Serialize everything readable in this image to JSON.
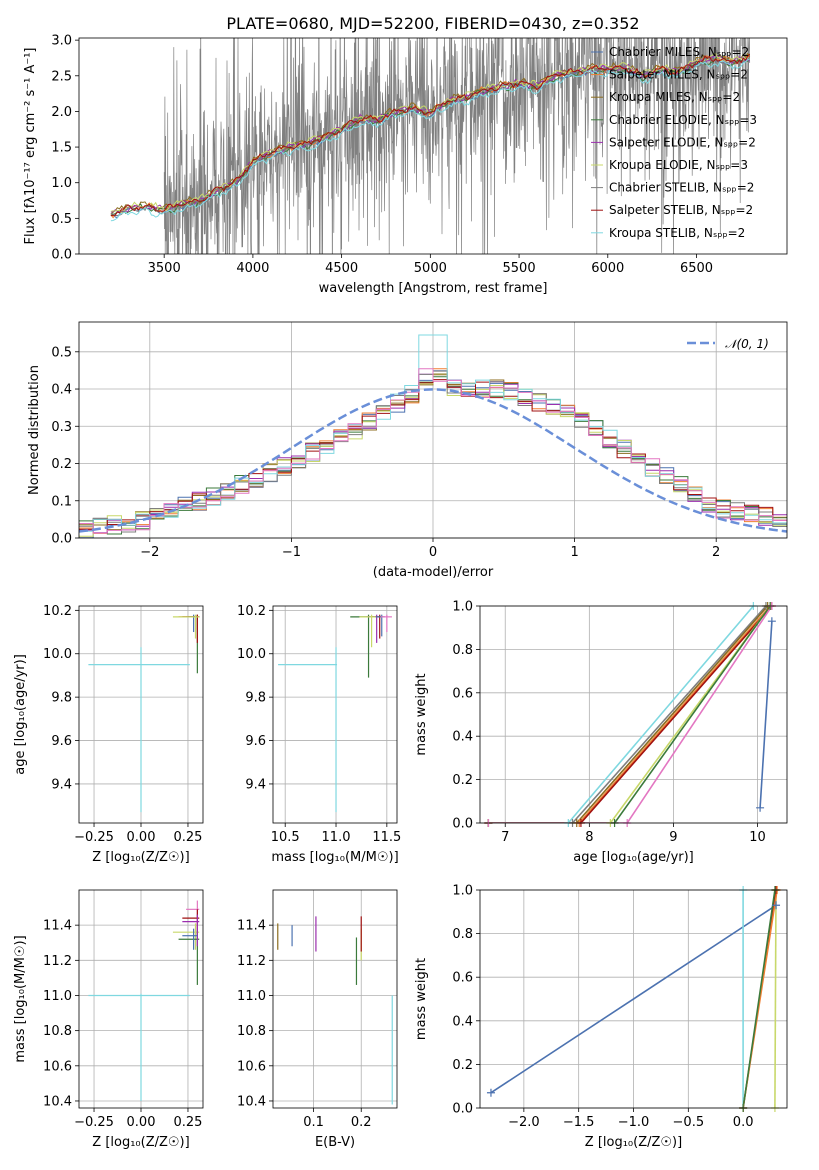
{
  "figure_title": "PLATE=0680, MJD=52200, FIBERID=0430, z=0.352",
  "colors": {
    "Chabrier MILES": "#4c72b0",
    "Salpeter MILES": "#f07f32",
    "Kroupa MILES": "#8c6d1f",
    "Chabrier ELODIE": "#3b7a3b",
    "Salpeter ELODIE": "#9b2fae",
    "Kroupa ELODIE": "#c8d86a",
    "Chabrier STELIB": "#7f7f7f",
    "Salpeter STELIB": "#a01010",
    "Kroupa STELIB": "#7fd8e0",
    "data": "#808080",
    "gauss": "#6a8fd8",
    "pink": "#e377c2"
  },
  "chart_data": [
    {
      "id": "spectrum",
      "type": "line",
      "title": "PLATE=0680, MJD=52200, FIBERID=0430, z=0.352",
      "xlabel": "wavelength [Angstrom, rest frame]",
      "ylabel": "Flux [fλ10⁻¹⁷ erg cm⁻² s⁻¹ A⁻¹]",
      "xlim": [
        3020,
        7010
      ],
      "ylim": [
        0,
        3.03
      ],
      "xticks": [
        3500,
        4000,
        4500,
        5000,
        5500,
        6000,
        6500
      ],
      "yticks": [
        0.0,
        0.5,
        1.0,
        1.5,
        2.0,
        2.5,
        3.0
      ],
      "legend_position": "top-right",
      "series": [
        {
          "name": "Chabrier MILES, Nₛₚₚ=2",
          "key": "Chabrier MILES"
        },
        {
          "name": "Salpeter MILES, Nₛₚₚ=2",
          "key": "Salpeter MILES"
        },
        {
          "name": "Kroupa MILES, Nₛₚₚ=2",
          "key": "Kroupa MILES"
        },
        {
          "name": "Chabrier ELODIE, Nₛₚₚ=3",
          "key": "Chabrier ELODIE"
        },
        {
          "name": "Salpeter ELODIE, Nₛₚₚ=2",
          "key": "Salpeter ELODIE"
        },
        {
          "name": "Kroupa ELODIE, Nₛₚₚ=3",
          "key": "Kroupa ELODIE"
        },
        {
          "name": "Chabrier STELIB, Nₛₚₚ=2",
          "key": "Chabrier STELIB"
        },
        {
          "name": "Salpeter STELIB, Nₛₚₚ=2",
          "key": "Salpeter STELIB"
        },
        {
          "name": "Kroupa STELIB, Nₛₚₚ=2",
          "key": "Kroupa STELIB"
        }
      ],
      "model_envelope": {
        "x": [
          3200,
          3300,
          3400,
          3500,
          3600,
          3700,
          3800,
          3900,
          4000,
          4100,
          4200,
          4300,
          4400,
          4500,
          4600,
          4700,
          4800,
          4900,
          5000,
          5100,
          5200,
          5300,
          5400,
          5500,
          5600,
          5700,
          5800,
          5900,
          6000,
          6100,
          6200,
          6300,
          6400,
          6500,
          6600,
          6700,
          6800
        ],
        "y": [
          0.55,
          0.65,
          0.67,
          0.62,
          0.7,
          0.75,
          0.9,
          1.0,
          1.3,
          1.42,
          1.5,
          1.55,
          1.63,
          1.75,
          1.9,
          1.88,
          2.0,
          2.05,
          1.98,
          2.15,
          2.2,
          2.3,
          2.35,
          2.4,
          2.35,
          2.5,
          2.55,
          2.6,
          2.6,
          2.62,
          2.5,
          2.6,
          2.55,
          2.7,
          2.75,
          2.7,
          2.75
        ]
      },
      "data_noise_range": [
        3500,
        6800
      ]
    },
    {
      "id": "residuals",
      "type": "histogram",
      "xlabel": "(data-model)/error",
      "ylabel": "Normed distribution",
      "xlim": [
        -2.5,
        2.5
      ],
      "ylim": [
        0,
        0.58
      ],
      "xticks": [
        -2,
        -1,
        0,
        1,
        2
      ],
      "yticks": [
        0.0,
        0.1,
        0.2,
        0.3,
        0.4,
        0.5
      ],
      "legend_position": "top-right",
      "legend": "𝒩(0, 1)",
      "bin_width": 0.1,
      "hist_envelope": {
        "x": [
          -2.5,
          -2.0,
          -1.5,
          -1.0,
          -0.5,
          -0.1,
          0.0,
          0.1,
          0.5,
          1.0,
          1.5,
          2.0,
          2.5
        ],
        "y": [
          0.02,
          0.05,
          0.12,
          0.2,
          0.3,
          0.4,
          0.46,
          0.4,
          0.4,
          0.33,
          0.2,
          0.08,
          0.05
        ]
      },
      "peak_bin": {
        "x": 0.0,
        "y": 0.545
      }
    },
    {
      "id": "age-vs-Z",
      "type": "errorbar",
      "xlabel": "Z [log₁₀(Z/Z☉)]",
      "ylabel": "age  [log₁₀(age/yr)]",
      "xlim": [
        -0.33,
        0.33
      ],
      "ylim": [
        9.22,
        10.22
      ],
      "xticks": [
        -0.25,
        0.0,
        0.25
      ],
      "yticks": [
        9.4,
        9.6,
        9.8,
        10.0,
        10.2
      ],
      "points": [
        {
          "key": "Kroupa STELIB",
          "x": 0.0,
          "y": 9.95,
          "xerr": [
            0.28,
            0.26
          ],
          "yerr": [
            0.68,
            0.08
          ]
        },
        {
          "key": "Chabrier MILES",
          "x": 0.28,
          "y": 10.17,
          "xerr": [
            0.04,
            0.02
          ],
          "yerr": [
            0.07,
            0.01
          ]
        },
        {
          "key": "Salpeter MILES",
          "x": 0.3,
          "y": 10.17,
          "xerr": [
            0.1,
            0.01
          ],
          "yerr": [
            0.06,
            0.01
          ]
        },
        {
          "key": "Chabrier ELODIE",
          "x": 0.3,
          "y": 10.17,
          "xerr": [
            0.05,
            0.01
          ],
          "yerr": [
            0.26,
            0.01
          ]
        },
        {
          "key": "Salpeter STELIB",
          "x": 0.3,
          "y": 10.17,
          "xerr": [
            0.08,
            0.01
          ],
          "yerr": [
            0.12,
            0.01
          ]
        },
        {
          "key": "Kroupa ELODIE",
          "x": 0.29,
          "y": 10.17,
          "xerr": [
            0.12,
            0.02
          ],
          "yerr": [
            0.1,
            0.01
          ]
        }
      ]
    },
    {
      "id": "age-vs-mass",
      "type": "errorbar",
      "xlabel": "mass [log₁₀(M/M☉)]",
      "ylabel": "",
      "xlim": [
        10.38,
        11.6
      ],
      "ylim": [
        9.22,
        10.22
      ],
      "xticks": [
        10.5,
        11.0,
        11.5
      ],
      "yticks": [
        9.4,
        9.6,
        9.8,
        10.0,
        10.2
      ],
      "points": [
        {
          "key": "Kroupa STELIB",
          "x": 11.0,
          "y": 9.95,
          "xerr": [
            0.57,
            0.01
          ],
          "yerr": [
            0.68,
            0.08
          ]
        },
        {
          "key": "Chabrier ELODIE",
          "x": 11.32,
          "y": 10.17,
          "xerr": [
            0.18,
            0.05
          ],
          "yerr": [
            0.28,
            0.01
          ]
        },
        {
          "key": "Salpeter ELODIE",
          "x": 11.4,
          "y": 10.17,
          "xerr": [
            0.1,
            0.03
          ],
          "yerr": [
            0.12,
            0.01
          ]
        },
        {
          "key": "Salpeter STELIB",
          "x": 11.43,
          "y": 10.17,
          "xerr": [
            0.08,
            0.03
          ],
          "yerr": [
            0.1,
            0.01
          ]
        },
        {
          "key": "Kroupa ELODIE",
          "x": 11.35,
          "y": 10.17,
          "xerr": [
            0.12,
            0.05
          ],
          "yerr": [
            0.14,
            0.01
          ]
        },
        {
          "key": "Chabrier MILES",
          "x": 11.45,
          "y": 10.17,
          "xerr": [
            0.06,
            0.03
          ],
          "yerr": [
            0.09,
            0.01
          ]
        },
        {
          "key": "pink",
          "x": 11.5,
          "y": 10.17,
          "xerr": [
            0.06,
            0.05
          ],
          "yerr": [
            0.07,
            0.01
          ]
        }
      ]
    },
    {
      "id": "massweight-vs-age",
      "type": "line",
      "xlabel": "age  [log₁₀(age/yr)]",
      "ylabel": "mass weight",
      "xlim": [
        6.7,
        10.35
      ],
      "ylim": [
        0,
        1.0
      ],
      "xticks": [
        7,
        8,
        9,
        10
      ],
      "yticks": [
        0.0,
        0.2,
        0.4,
        0.6,
        0.8,
        1.0
      ],
      "series": [
        {
          "key": "Kroupa STELIB",
          "x": [
            6.8,
            7.75,
            9.95
          ],
          "y": [
            0.0,
            0.0,
            1.0
          ]
        },
        {
          "key": "Chabrier STELIB",
          "x": [
            6.8,
            7.8,
            10.1
          ],
          "y": [
            0.0,
            0.0,
            1.0
          ]
        },
        {
          "key": "Kroupa MILES",
          "x": [
            6.8,
            7.85,
            10.12
          ],
          "y": [
            0.0,
            0.0,
            1.0
          ]
        },
        {
          "key": "Salpeter MILES",
          "x": [
            6.8,
            7.88,
            10.15
          ],
          "y": [
            0.0,
            0.0,
            1.0
          ]
        },
        {
          "key": "Salpeter STELIB",
          "x": [
            6.8,
            7.9,
            10.17
          ],
          "y": [
            0.0,
            0.0,
            1.0
          ]
        },
        {
          "key": "Kroupa ELODIE",
          "x": [
            6.8,
            8.25,
            10.15
          ],
          "y": [
            0.0,
            0.0,
            1.0
          ]
        },
        {
          "key": "Chabrier ELODIE",
          "x": [
            6.8,
            8.3,
            10.15
          ],
          "y": [
            0.0,
            0.0,
            1.0
          ]
        },
        {
          "key": "pink",
          "x": [
            6.8,
            8.45,
            10.17
          ],
          "y": [
            0.0,
            0.0,
            1.0
          ]
        },
        {
          "key": "Chabrier MILES",
          "x": [
            10.03,
            10.17
          ],
          "y": [
            0.07,
            0.93
          ]
        }
      ]
    },
    {
      "id": "mass-vs-Z",
      "type": "errorbar",
      "xlabel": "Z [log₁₀(Z/Z☉)]",
      "ylabel": "mass [log₁₀(M/M☉)]",
      "xlim": [
        -0.33,
        0.33
      ],
      "ylim": [
        10.36,
        11.6
      ],
      "xticks": [
        -0.25,
        0.0,
        0.25
      ],
      "yticks": [
        10.4,
        10.6,
        10.8,
        11.0,
        11.2,
        11.4
      ],
      "points": [
        {
          "key": "Kroupa STELIB",
          "x": 0.0,
          "y": 11.0,
          "xerr": [
            0.28,
            0.26
          ],
          "yerr": [
            0.6,
            0.01
          ]
        },
        {
          "key": "pink",
          "x": 0.3,
          "y": 11.49,
          "xerr": [
            0.06,
            0.01
          ],
          "yerr": [
            0.05,
            0.05
          ]
        },
        {
          "key": "Salpeter STELIB",
          "x": 0.3,
          "y": 11.44,
          "xerr": [
            0.08,
            0.01
          ],
          "yerr": [
            0.1,
            0.05
          ]
        },
        {
          "key": "Kroupa ELODIE",
          "x": 0.29,
          "y": 11.36,
          "xerr": [
            0.12,
            0.02
          ],
          "yerr": [
            0.1,
            0.05
          ]
        },
        {
          "key": "Chabrier ELODIE",
          "x": 0.3,
          "y": 11.32,
          "xerr": [
            0.1,
            0.01
          ],
          "yerr": [
            0.26,
            0.05
          ]
        },
        {
          "key": "Salpeter ELODIE",
          "x": 0.3,
          "y": 11.42,
          "xerr": [
            0.08,
            0.01
          ],
          "yerr": [
            0.14,
            0.04
          ]
        },
        {
          "key": "Chabrier MILES",
          "x": 0.28,
          "y": 11.34,
          "xerr": [
            0.06,
            0.02
          ],
          "yerr": [
            0.08,
            0.04
          ]
        }
      ]
    },
    {
      "id": "mass-vs-EBV",
      "type": "errorbar",
      "xlabel": "E(B-V)",
      "ylabel": "",
      "xlim": [
        0.015,
        0.275
      ],
      "ylim": [
        10.36,
        11.6
      ],
      "xticks": [
        0.1,
        0.2
      ],
      "yticks": [
        10.4,
        10.6,
        10.8,
        11.0,
        11.2,
        11.4
      ],
      "points": [
        {
          "key": "Kroupa MILES",
          "x": 0.025,
          "y": 11.36,
          "yerr": [
            0.1,
            0.05
          ]
        },
        {
          "key": "Chabrier MILES",
          "x": 0.055,
          "y": 11.34,
          "yerr": [
            0.06,
            0.06
          ]
        },
        {
          "key": "Salpeter ELODIE",
          "x": 0.105,
          "y": 11.35,
          "yerr": [
            0.1,
            0.1
          ]
        },
        {
          "key": "Chabrier ELODIE",
          "x": 0.19,
          "y": 11.2,
          "yerr": [
            0.14,
            0.13
          ]
        },
        {
          "key": "Kroupa ELODIE",
          "x": 0.2,
          "y": 11.3,
          "yerr": [
            0.1,
            0.08
          ]
        },
        {
          "key": "Salpeter STELIB",
          "x": 0.2,
          "y": 11.35,
          "yerr": [
            0.1,
            0.1
          ]
        },
        {
          "key": "Kroupa STELIB",
          "x": 0.265,
          "y": 10.7,
          "yerr": [
            0.32,
            0.3
          ]
        }
      ]
    },
    {
      "id": "massweight-vs-Z",
      "type": "line",
      "xlabel": "Z [log₁₀(Z/Z☉)]",
      "ylabel": "mass weight",
      "xlim": [
        -2.4,
        0.4
      ],
      "ylim": [
        0,
        1.0
      ],
      "xticks": [
        -2.0,
        -1.5,
        -1.0,
        -0.5,
        0.0
      ],
      "yticks": [
        0.0,
        0.2,
        0.4,
        0.6,
        0.8,
        1.0
      ],
      "series": [
        {
          "key": "Chabrier MILES",
          "x": [
            -2.3,
            0.3
          ],
          "y": [
            0.07,
            0.93
          ]
        },
        {
          "key": "Kroupa STELIB",
          "x": [
            0.0,
            0.0
          ],
          "y": [
            0.0,
            1.0
          ]
        },
        {
          "key": "Kroupa ELODIE",
          "x": [
            0.29,
            0.3
          ],
          "y": [
            0.0,
            1.0
          ]
        },
        {
          "key": "Salpeter STELIB",
          "x": [
            0.0,
            0.3
          ],
          "y": [
            0.0,
            1.0
          ]
        },
        {
          "key": "Salpeter MILES",
          "x": [
            0.0,
            0.31
          ],
          "y": [
            0.0,
            1.0
          ]
        },
        {
          "key": "Chabrier ELODIE",
          "x": [
            0.0,
            0.29
          ],
          "y": [
            0.0,
            1.0
          ]
        }
      ]
    }
  ]
}
